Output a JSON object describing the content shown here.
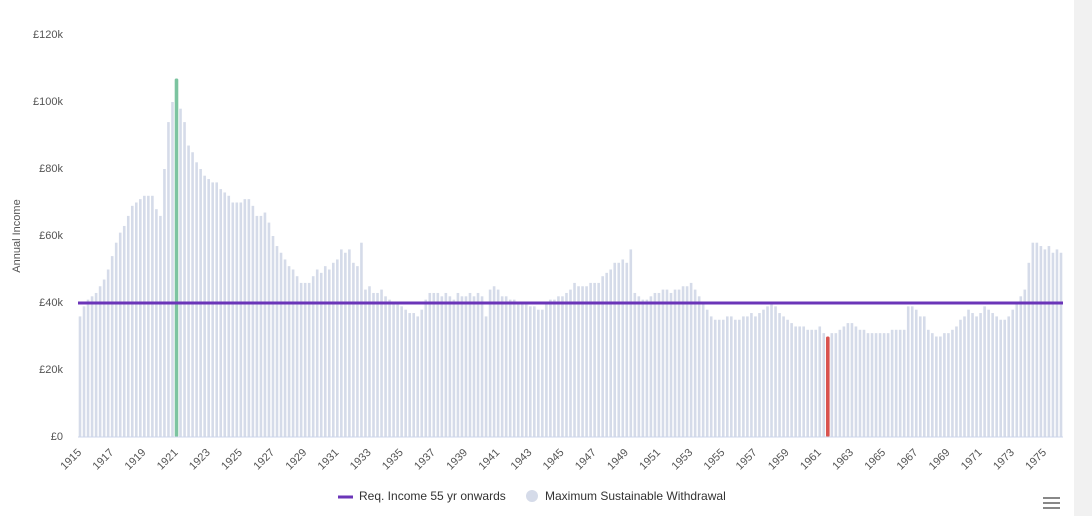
{
  "chart_data": {
    "type": "bar",
    "y_axis_label": "Annual Income",
    "categories": [
      "1915",
      null,
      null,
      null,
      null,
      null,
      null,
      null,
      "1917",
      null,
      null,
      null,
      null,
      null,
      null,
      null,
      "1919",
      null,
      null,
      null,
      null,
      null,
      null,
      null,
      "1921",
      null,
      null,
      null,
      null,
      null,
      null,
      null,
      "1923",
      null,
      null,
      null,
      null,
      null,
      null,
      null,
      "1925",
      null,
      null,
      null,
      null,
      null,
      null,
      null,
      "1927",
      null,
      null,
      null,
      null,
      null,
      null,
      null,
      "1929",
      null,
      null,
      null,
      null,
      null,
      null,
      null,
      "1931",
      null,
      null,
      null,
      null,
      null,
      null,
      null,
      "1933",
      null,
      null,
      null,
      null,
      null,
      null,
      null,
      "1935",
      null,
      null,
      null,
      null,
      null,
      null,
      null,
      "1937",
      null,
      null,
      null,
      null,
      null,
      null,
      null,
      "1939",
      null,
      null,
      null,
      null,
      null,
      null,
      null,
      "1941",
      null,
      null,
      null,
      null,
      null,
      null,
      null,
      "1943",
      null,
      null,
      null,
      null,
      null,
      null,
      null,
      "1945",
      null,
      null,
      null,
      null,
      null,
      null,
      null,
      "1947",
      null,
      null,
      null,
      null,
      null,
      null,
      null,
      "1949",
      null,
      null,
      null,
      null,
      null,
      null,
      null,
      "1951",
      null,
      null,
      null,
      null,
      null,
      null,
      null,
      "1953",
      null,
      null,
      null,
      null,
      null,
      null,
      null,
      "1955",
      null,
      null,
      null,
      null,
      null,
      null,
      null,
      "1957",
      null,
      null,
      null,
      null,
      null,
      null,
      null,
      "1959",
      null,
      null,
      null,
      null,
      null,
      null,
      null,
      "1961",
      null,
      null,
      null,
      null,
      null,
      null,
      null,
      "1963",
      null,
      null,
      null,
      null,
      null,
      null,
      null,
      "1965",
      null,
      null,
      null,
      null,
      null,
      null,
      null,
      "1967",
      null,
      null,
      null,
      null,
      null,
      null,
      null,
      "1969",
      null,
      null,
      null,
      null,
      null,
      null,
      null,
      "1971",
      null,
      null,
      null,
      null,
      null,
      null,
      null,
      "1973",
      null,
      null,
      null,
      null,
      null,
      null,
      null,
      "1975",
      null,
      null,
      null,
      null
    ],
    "series": [
      {
        "name": "Maximum Sustainable Withdrawal",
        "color": "#d5dbe9",
        "highlight_colors": {
          "24": "#7cc4a0",
          "186": "#d9534f"
        },
        "values": [
          36,
          39,
          41,
          42,
          43,
          45,
          47,
          50,
          54,
          58,
          61,
          63,
          66,
          69,
          70,
          71,
          72,
          72,
          72,
          68,
          66,
          80,
          94,
          100,
          107,
          98,
          94,
          87,
          85,
          82,
          80,
          78,
          77,
          76,
          76,
          74,
          73,
          72,
          70,
          70,
          70,
          71,
          71,
          69,
          66,
          66,
          67,
          64,
          60,
          57,
          55,
          53,
          51,
          50,
          48,
          46,
          46,
          46,
          48,
          50,
          49,
          51,
          50,
          52,
          53,
          56,
          55,
          56,
          52,
          51,
          58,
          44,
          45,
          43,
          43,
          44,
          42,
          41,
          40,
          40,
          39,
          38,
          37,
          37,
          36,
          38,
          41,
          43,
          43,
          43,
          42,
          43,
          42,
          41,
          43,
          42,
          42,
          43,
          42,
          43,
          42,
          36,
          44,
          45,
          44,
          42,
          42,
          41,
          41,
          40,
          40,
          40,
          39,
          39,
          38,
          38,
          40,
          41,
          41,
          42,
          42,
          43,
          44,
          46,
          45,
          45,
          45,
          46,
          46,
          46,
          48,
          49,
          50,
          52,
          52,
          53,
          52,
          56,
          43,
          42,
          41,
          41,
          42,
          43,
          43,
          44,
          44,
          43,
          44,
          44,
          45,
          45,
          46,
          44,
          42,
          40,
          38,
          36,
          35,
          35,
          35,
          36,
          36,
          35,
          35,
          36,
          36,
          37,
          36,
          37,
          38,
          39,
          40,
          39,
          37,
          36,
          35,
          34,
          33,
          33,
          33,
          32,
          32,
          32,
          33,
          31,
          30,
          31,
          31,
          32,
          33,
          34,
          34,
          33,
          32,
          32,
          31,
          31,
          31,
          31,
          31,
          31,
          32,
          32,
          32,
          32,
          39,
          39,
          38,
          36,
          36,
          32,
          31,
          30,
          30,
          31,
          31,
          32,
          33,
          35,
          36,
          38,
          37,
          36,
          37,
          39,
          38,
          37,
          36,
          35,
          35,
          36,
          38,
          40,
          42,
          44,
          52,
          58,
          58,
          57,
          56,
          57,
          55,
          56,
          55
        ]
      },
      {
        "name": "Req. Income 55 yr onwards",
        "color": "#6b35b8",
        "value": 40
      }
    ],
    "ylim": [
      0,
      120
    ],
    "yticks": [
      {
        "value": 0,
        "label": "£0"
      },
      {
        "value": 20,
        "label": "£20k"
      },
      {
        "value": 40,
        "label": "£40k"
      },
      {
        "value": 60,
        "label": "£60k"
      },
      {
        "value": 80,
        "label": "£80k"
      },
      {
        "value": 100,
        "label": "£100k"
      },
      {
        "value": 120,
        "label": "£120k"
      }
    ]
  }
}
